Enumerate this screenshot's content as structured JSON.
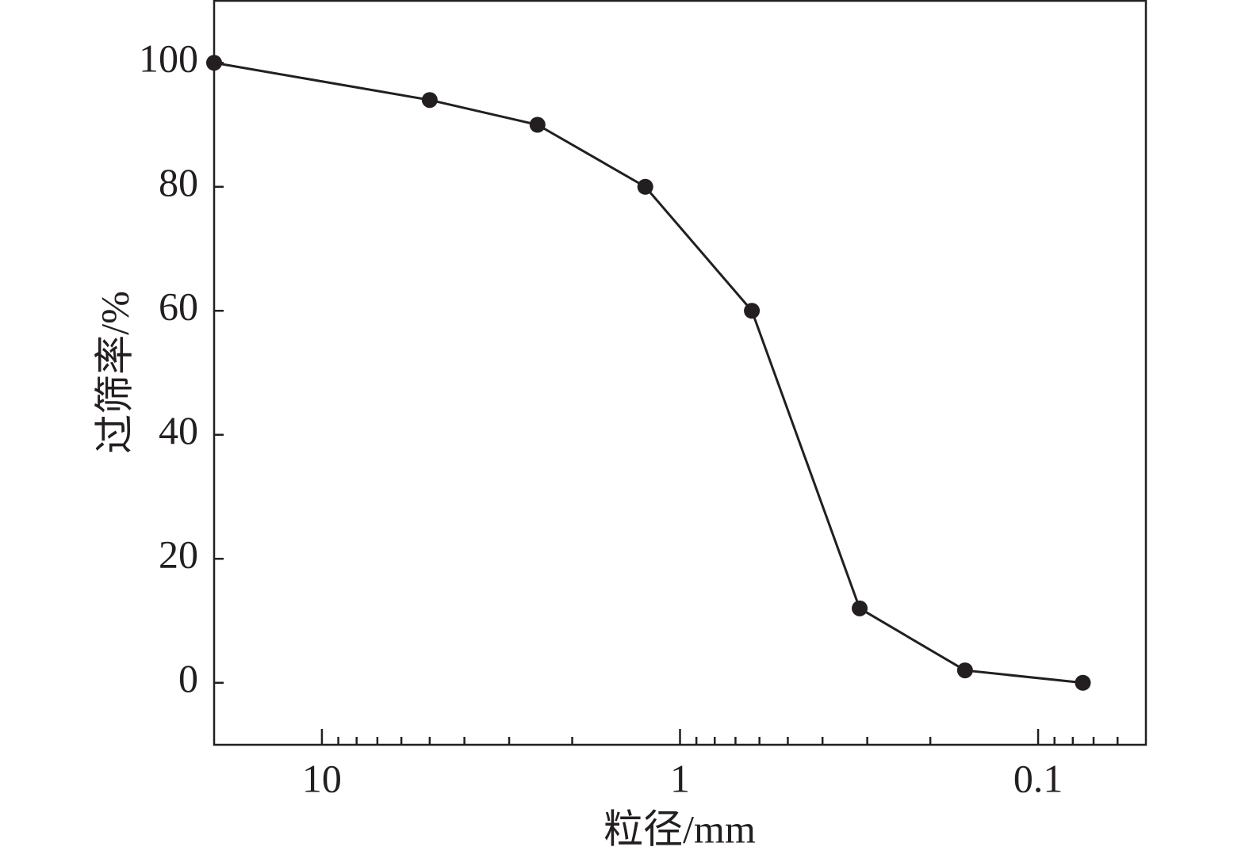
{
  "chart_data": {
    "type": "line",
    "x_label": "粒径/mm",
    "y_label": "过筛率/%",
    "x": [
      20,
      5,
      2.5,
      1.25,
      0.63,
      0.315,
      0.16,
      0.075
    ],
    "series": [
      {
        "color": "#231f20",
        "values": [
          100,
          94,
          90,
          80,
          60,
          12,
          2,
          0
        ]
      }
    ],
    "xscale": "log",
    "xlim": [
      20,
      0.05
    ],
    "xticks": [
      10,
      1,
      0.1
    ],
    "xminor_ticks": [
      9,
      8,
      7,
      6,
      5,
      4,
      3,
      2,
      0.9,
      0.8,
      0.7,
      0.6,
      0.5,
      0.4,
      0.3,
      0.2,
      0.09,
      0.08,
      0.07,
      0.06
    ],
    "ylim": [
      -10,
      110
    ],
    "yticks": [
      0,
      20,
      40,
      60,
      80,
      100
    ],
    "grid": false
  }
}
